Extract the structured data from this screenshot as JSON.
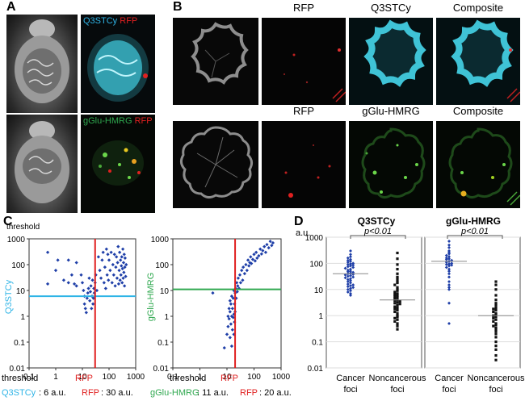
{
  "figure": {
    "panels": {
      "A": {
        "label": "A",
        "top_title_probe": "Q3STCy",
        "top_title_rfp": "RFP",
        "bottom_title_probe": "gGlu-HMRG",
        "bottom_title_rfp": "RFP"
      },
      "B": {
        "label": "B",
        "row1_titles": [
          "RFP",
          "Q3STCy",
          "Composite"
        ],
        "row2_titles": [
          "RFP",
          "gGlu-HMRG",
          "Composite"
        ]
      },
      "C": {
        "label": "C"
      },
      "D": {
        "label": "D"
      }
    },
    "colors": {
      "q3stcy": "#2fb4e6",
      "rfp": "#e02020",
      "gglu": "#2fa84f",
      "points": "#1f3fa8"
    },
    "icons": [
      "mouse-photo",
      "fluorescence-image",
      "colon-section-image"
    ]
  },
  "chart_data": [
    {
      "type": "scatter",
      "title": "",
      "xlabel_left": "threshold",
      "xlabel_rfp": "RFP",
      "ylabel": "Q3STCy",
      "x_scale": "log",
      "y_scale": "log",
      "xlim": [
        0.1,
        1000
      ],
      "ylim": [
        0.01,
        1000
      ],
      "x_ticks": [
        "0.1",
        "1",
        "10",
        "100",
        "1000"
      ],
      "y_ticks": [
        "threshold",
        "1000",
        "100",
        "10",
        "1",
        "0.1",
        "0.01"
      ],
      "y_threshold": 6,
      "x_threshold": 30,
      "caption_probe": "Q3STCy",
      "caption_probe_value": ": 6 a.u.",
      "caption_rfp": "RFP",
      "caption_rfp_value": ": 30 a.u.",
      "points": [
        [
          0.5,
          300
        ],
        [
          0.5,
          18
        ],
        [
          1.2,
          150
        ],
        [
          1,
          60
        ],
        [
          2,
          25
        ],
        [
          3,
          150
        ],
        [
          3,
          20
        ],
        [
          4,
          40
        ],
        [
          5,
          18
        ],
        [
          6,
          120
        ],
        [
          6,
          15
        ],
        [
          9,
          40
        ],
        [
          10,
          20
        ],
        [
          11,
          10
        ],
        [
          12,
          6
        ],
        [
          12,
          3
        ],
        [
          13,
          2
        ],
        [
          14,
          1.4
        ],
        [
          15,
          5
        ],
        [
          16,
          8
        ],
        [
          17,
          12
        ],
        [
          18,
          30
        ],
        [
          19,
          4
        ],
        [
          20,
          9
        ],
        [
          21,
          15
        ],
        [
          22,
          2
        ],
        [
          23,
          6
        ],
        [
          24,
          25
        ],
        [
          25,
          3
        ],
        [
          26,
          5
        ],
        [
          27,
          12
        ],
        [
          28,
          8
        ],
        [
          30,
          20
        ],
        [
          32,
          40
        ],
        [
          35,
          10
        ],
        [
          40,
          200
        ],
        [
          45,
          60
        ],
        [
          50,
          30
        ],
        [
          55,
          150
        ],
        [
          60,
          300
        ],
        [
          65,
          20
        ],
        [
          70,
          80
        ],
        [
          75,
          12
        ],
        [
          80,
          400
        ],
        [
          85,
          40
        ],
        [
          90,
          250
        ],
        [
          95,
          25
        ],
        [
          100,
          150
        ],
        [
          110,
          60
        ],
        [
          120,
          300
        ],
        [
          130,
          20
        ],
        [
          140,
          100
        ],
        [
          150,
          40
        ],
        [
          160,
          250
        ],
        [
          170,
          15
        ],
        [
          180,
          80
        ],
        [
          190,
          200
        ],
        [
          200,
          30
        ],
        [
          210,
          120
        ],
        [
          220,
          500
        ],
        [
          230,
          18
        ],
        [
          240,
          60
        ],
        [
          250,
          300
        ],
        [
          260,
          25
        ],
        [
          270,
          150
        ],
        [
          280,
          40
        ],
        [
          290,
          90
        ],
        [
          300,
          200
        ],
        [
          310,
          20
        ],
        [
          320,
          70
        ],
        [
          330,
          400
        ],
        [
          340,
          30
        ],
        [
          350,
          120
        ],
        [
          360,
          50
        ],
        [
          370,
          250
        ],
        [
          380,
          15
        ],
        [
          390,
          80
        ],
        [
          400,
          180
        ],
        [
          420,
          35
        ],
        [
          440,
          100
        ]
      ]
    },
    {
      "type": "scatter",
      "title": "",
      "xlabel_left": "threshold",
      "xlabel_rfp": "RFP",
      "ylabel": "gGlu-HMRG",
      "x_scale": "log",
      "y_scale": "log",
      "xlim": [
        0.1,
        1000
      ],
      "ylim": [
        0.01,
        1000
      ],
      "x_ticks": [
        "0.1",
        "1",
        "10",
        "100",
        "1000"
      ],
      "y_ticks": [
        "1000",
        "100",
        "10",
        "1",
        "0.1",
        "0.01"
      ],
      "y_threshold": 11,
      "x_threshold": 20,
      "caption_probe": "gGlu-HMRG",
      "caption_probe_value": ": 11 a.u.",
      "caption_rfp": "RFP",
      "caption_rfp_value": ": 20 a.u.",
      "points": [
        [
          3,
          8
        ],
        [
          8,
          0.06
        ],
        [
          10,
          0.2
        ],
        [
          11,
          0.4
        ],
        [
          11,
          1
        ],
        [
          12,
          0.8
        ],
        [
          12,
          2
        ],
        [
          13,
          0.15
        ],
        [
          13,
          1.5
        ],
        [
          13,
          4
        ],
        [
          14,
          0.5
        ],
        [
          14,
          3
        ],
        [
          15,
          0.07
        ],
        [
          15,
          1
        ],
        [
          15,
          6
        ],
        [
          16,
          0.3
        ],
        [
          16,
          2
        ],
        [
          17,
          0.9
        ],
        [
          17,
          5
        ],
        [
          18,
          0.2
        ],
        [
          18,
          1.2
        ],
        [
          18,
          10
        ],
        [
          19,
          3
        ],
        [
          19,
          0.6
        ],
        [
          20,
          8
        ],
        [
          20,
          1.5
        ],
        [
          21,
          12
        ],
        [
          22,
          5
        ],
        [
          23,
          20
        ],
        [
          24,
          9
        ],
        [
          25,
          15
        ],
        [
          26,
          30
        ],
        [
          28,
          12
        ],
        [
          30,
          40
        ],
        [
          32,
          20
        ],
        [
          35,
          60
        ],
        [
          38,
          25
        ],
        [
          40,
          80
        ],
        [
          45,
          45
        ],
        [
          50,
          100
        ],
        [
          55,
          60
        ],
        [
          60,
          150
        ],
        [
          65,
          90
        ],
        [
          70,
          120
        ],
        [
          75,
          200
        ],
        [
          80,
          110
        ],
        [
          90,
          160
        ],
        [
          100,
          250
        ],
        [
          110,
          140
        ],
        [
          120,
          300
        ],
        [
          130,
          180
        ],
        [
          150,
          220
        ],
        [
          170,
          400
        ],
        [
          190,
          260
        ],
        [
          210,
          350
        ],
        [
          240,
          500
        ],
        [
          270,
          300
        ],
        [
          300,
          600
        ],
        [
          350,
          450
        ],
        [
          400,
          800
        ],
        [
          450,
          550
        ],
        [
          500,
          700
        ]
      ]
    },
    {
      "type": "scatter",
      "title_1": "Q3STCy",
      "title_2": "gGlu-HMRG",
      "p_value": "p<0.01",
      "ylabel": "a.u.",
      "y_scale": "log",
      "ylim": [
        0.01,
        1000
      ],
      "y_ticks": [
        "1000",
        "100",
        "10",
        "1",
        "0.1",
        "0.01"
      ],
      "categories": [
        "Cancer foci",
        "Noncancerous foci",
        "Cancer foci",
        "Noncancerous foci"
      ],
      "category_lines": [
        [
          "Cancer",
          "foci"
        ],
        [
          "Noncancerous",
          "foci"
        ],
        [
          "Cancer",
          "foci"
        ],
        [
          "Noncancerous",
          "foci"
        ]
      ],
      "series": [
        {
          "name": "Q3STCy cancer foci",
          "median": 40,
          "values": [
            300,
            220,
            180,
            160,
            140,
            130,
            120,
            110,
            100,
            95,
            90,
            85,
            80,
            75,
            70,
            65,
            60,
            55,
            50,
            48,
            45,
            42,
            40,
            38,
            36,
            34,
            32,
            30,
            28,
            26,
            24,
            22,
            20,
            18,
            16,
            15,
            14,
            13,
            12,
            11,
            10,
            9,
            8,
            7,
            6
          ]
        },
        {
          "name": "Q3STCy noncancerous foci",
          "median": 4,
          "values": [
            250,
            150,
            90,
            60,
            40,
            30,
            25,
            20,
            18,
            15,
            12,
            10,
            9,
            8,
            7,
            6.5,
            6,
            5.5,
            5,
            4.5,
            4,
            3.8,
            3.5,
            3.2,
            3,
            2.8,
            2.5,
            2.2,
            2,
            1.8,
            1.6,
            1.4,
            1.2,
            1,
            0.9,
            0.8,
            0.7,
            0.6,
            0.5,
            0.4,
            0.3
          ]
        },
        {
          "name": "gGlu-HMRG cancer foci",
          "median": 120,
          "values": [
            700,
            500,
            400,
            300,
            260,
            230,
            200,
            180,
            160,
            150,
            140,
            130,
            120,
            110,
            100,
            95,
            90,
            85,
            80,
            70,
            60,
            50,
            40,
            30,
            20,
            15,
            12,
            10,
            3,
            0.5
          ]
        },
        {
          "name": "gGlu-HMRG noncancerous foci",
          "median": 1,
          "values": [
            20,
            15,
            10,
            6,
            4,
            3,
            2.5,
            2,
            1.8,
            1.6,
            1.4,
            1.2,
            1.1,
            1,
            0.9,
            0.8,
            0.7,
            0.6,
            0.5,
            0.45,
            0.4,
            0.35,
            0.3,
            0.25,
            0.2,
            0.15,
            0.1,
            0.07,
            0.05,
            0.03,
            0.02
          ]
        }
      ]
    }
  ]
}
